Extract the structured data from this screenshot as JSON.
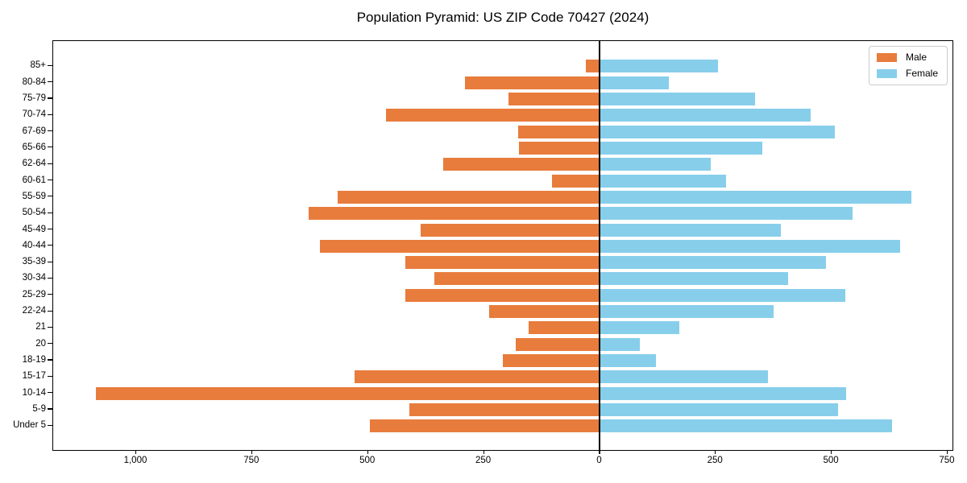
{
  "title": "Population Pyramid: US ZIP Code 70427 (2024)",
  "legend": {
    "items": [
      {
        "label": "Male",
        "color": "#e87c3c"
      },
      {
        "label": "Female",
        "color": "#87ceeb"
      }
    ]
  },
  "chart_data": {
    "type": "bar",
    "orientation": "horizontal_pyramid",
    "title": "Population Pyramid: US ZIP Code 70427 (2024)",
    "categories_order": "top_to_bottom",
    "categories": [
      "85+",
      "80-84",
      "75-79",
      "70-74",
      "67-69",
      "65-66",
      "62-64",
      "60-61",
      "55-59",
      "50-54",
      "45-49",
      "40-44",
      "35-39",
      "30-34",
      "25-29",
      "22-24",
      "21",
      "20",
      "18-19",
      "15-17",
      "10-14",
      "5-9",
      "Under 5"
    ],
    "series": [
      {
        "name": "Male",
        "side": "left",
        "color": "#e87c3c",
        "values": [
          28,
          290,
          195,
          460,
          175,
          172,
          337,
          102,
          565,
          627,
          385,
          603,
          418,
          355,
          418,
          237,
          151,
          179,
          208,
          528,
          1087,
          410,
          495
        ]
      },
      {
        "name": "Female",
        "side": "right",
        "color": "#87ceeb",
        "values": [
          258,
          152,
          338,
          457,
          510,
          353,
          242,
          275,
          675,
          548,
          393,
          650,
          491,
          408,
          532,
          377,
          173,
          88,
          124,
          366,
          535,
          517,
          633
        ]
      }
    ],
    "x_tick_values": [
      -1000,
      -750,
      -500,
      -250,
      0,
      250,
      500,
      750
    ],
    "x_tick_labels": [
      "1,000",
      "750",
      "500",
      "250",
      "0",
      "250",
      "500",
      "750"
    ],
    "xlim": [
      -1179,
      764
    ],
    "zero_axis_line": true,
    "grid": false,
    "legend_position": "upper right",
    "xlabel": "",
    "ylabel": ""
  }
}
